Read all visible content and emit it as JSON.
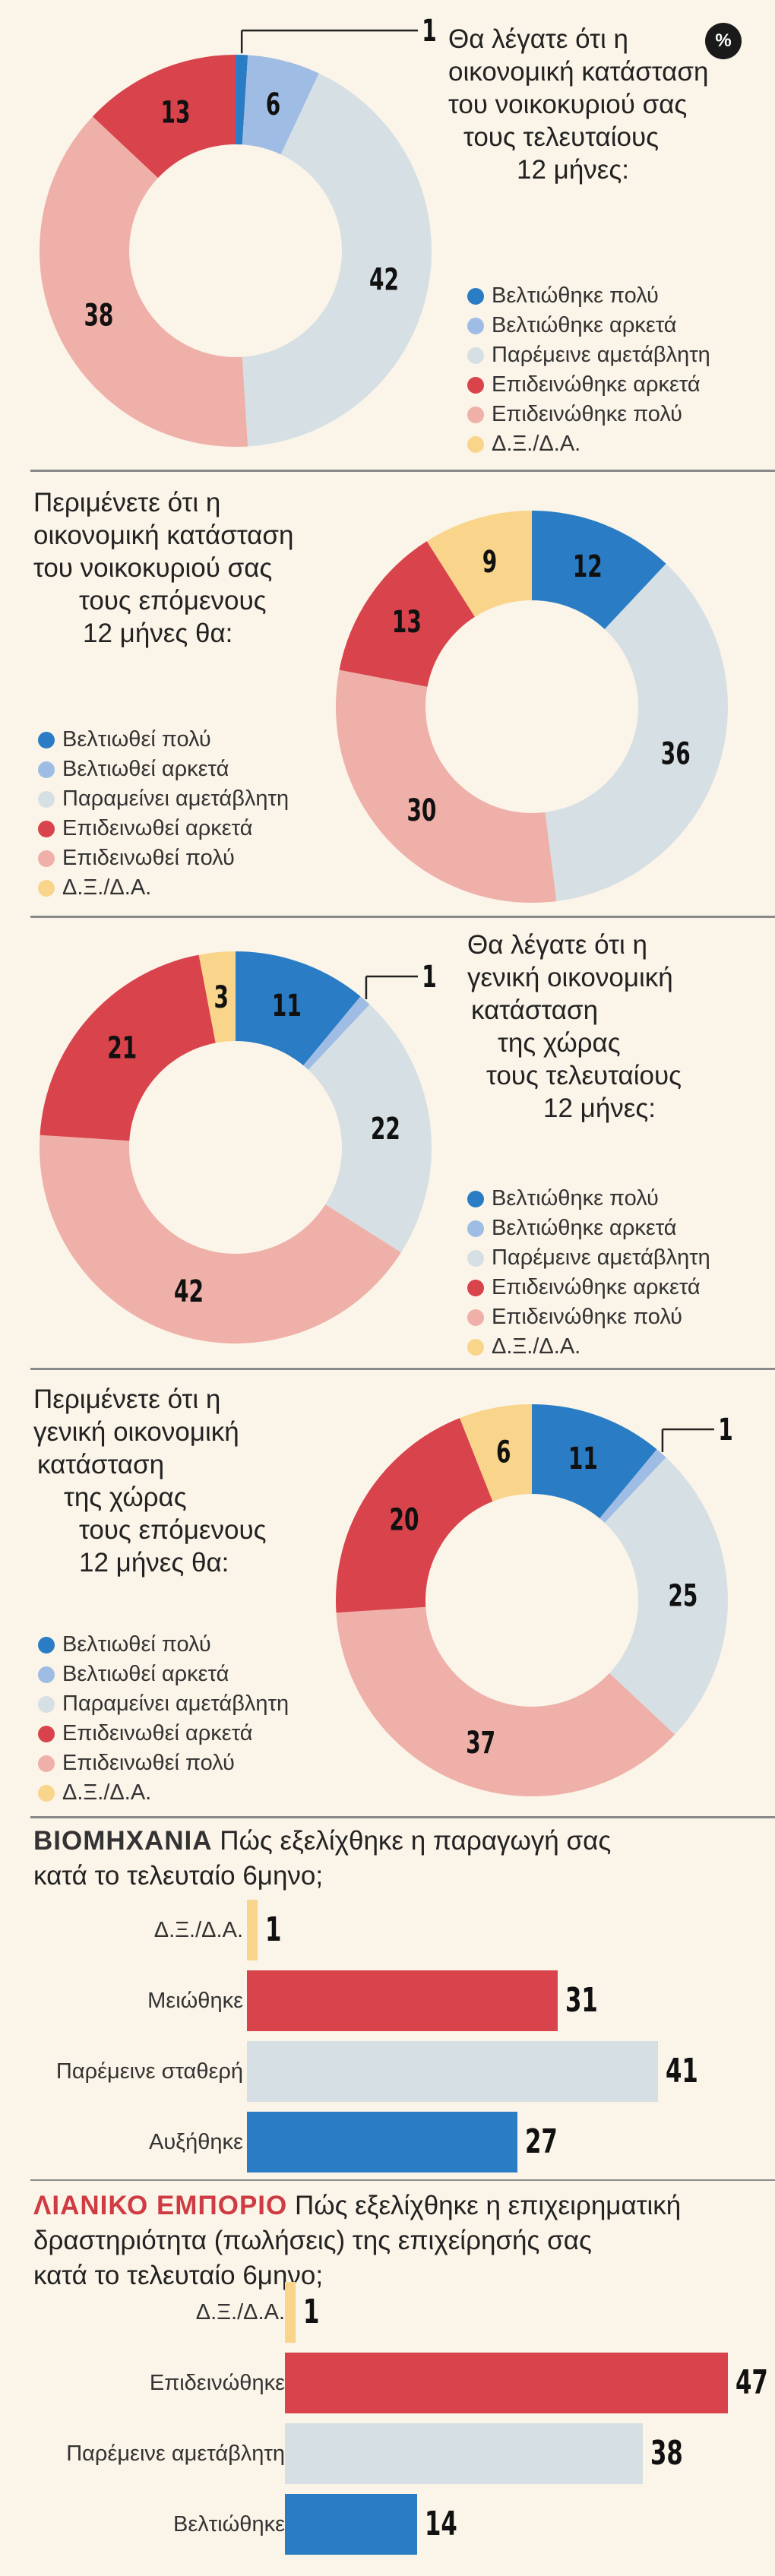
{
  "badge": "%",
  "colors": {
    "improved_much": "#2a7dc4",
    "improved_somewhat": "#9fbde4",
    "unchanged": "#d6e0e4",
    "worse_somewhat": "#d8434c",
    "worse_much": "#eeb0a8",
    "dk": "#f8d58a"
  },
  "chart_data": [
    {
      "type": "pie",
      "title": "Θα λέγατε ότι η οικονομική κατάσταση του νοικοκυριού σας τους τελευταίους 12 μήνες:",
      "categories": [
        "Βελτιώθηκε πολύ",
        "Βελτιώθηκε αρκετά",
        "Παρέμεινε αμετάβλητη",
        "Επιδεινώθηκε αρκετά",
        "Επιδεινώθηκε πολύ",
        "Δ.Ξ./Δ.Α."
      ],
      "values": [
        1,
        6,
        42,
        13,
        38,
        0
      ],
      "labels": [
        "1",
        "6",
        "42",
        "13",
        "38",
        ""
      ]
    },
    {
      "type": "pie",
      "title": "Περιμένετε ότι η οικονομική κατάσταση του νοικοκυριού σας τους επόμενους 12 μήνες θα:",
      "categories": [
        "Βελτιωθεί πολύ",
        "Βελτιωθεί αρκετά",
        "Παραμείνει αμετάβλητη",
        "Επιδεινωθεί αρκετά",
        "Επιδεινωθεί πολύ",
        "Δ.Ξ./Δ.Α."
      ],
      "values": [
        12,
        0,
        36,
        13,
        30,
        9
      ],
      "labels": [
        "12",
        "",
        "36",
        "13",
        "30",
        "9"
      ]
    },
    {
      "type": "pie",
      "title": "Θα λέγατε ότι η γενική οικονομική κατάσταση της χώρας τους τελευταίους 12 μήνες:",
      "categories": [
        "Βελτιώθηκε πολύ",
        "Βελτιώθηκε αρκετά",
        "Παρέμεινε αμετάβλητη",
        "Επιδεινώθηκε αρκετά",
        "Επιδεινώθηκε πολύ",
        "Δ.Ξ./Δ.Α."
      ],
      "values": [
        11,
        1,
        22,
        21,
        42,
        3
      ],
      "labels": [
        "11",
        "1",
        "22",
        "21",
        "42",
        "3"
      ]
    },
    {
      "type": "pie",
      "title": "Περιμένετε ότι η γενική οικονομική κατάσταση της χώρας τους επόμενους 12 μήνες θα:",
      "categories": [
        "Βελτιωθεί πολύ",
        "Βελτιωθεί αρκετά",
        "Παραμείνει αμετάβλητη",
        "Επιδεινωθεί αρκετά",
        "Επιδεινωθεί πολύ",
        "Δ.Ξ./Δ.Α."
      ],
      "values": [
        11,
        1,
        25,
        20,
        37,
        6
      ],
      "labels": [
        "11",
        "1",
        "25",
        "20",
        "37",
        "6"
      ]
    },
    {
      "type": "bar",
      "title_keyword": "ΒΙΟΜΗΧΑΝΙΑ",
      "title": "Πώς εξελίχθηκε η παραγωγή σας κατά το τελευταίο 6μηνο;",
      "categories": [
        "Δ.Ξ./Δ.Α.",
        "Μειώθηκε",
        "Παρέμεινε σταθερή",
        "Αυξήθηκε"
      ],
      "values": [
        1,
        31,
        41,
        27
      ],
      "colors": [
        "#f8d58a",
        "#d8434c",
        "#d6e0e4",
        "#2a7dc4"
      ],
      "xlim": [
        0,
        45
      ]
    },
    {
      "type": "bar",
      "title_keyword": "ΛΙΑΝΙΚΟ ΕΜΠΟΡΙΟ",
      "title": "Πώς εξελίχθηκε η επιχειρηματική δραστηριότητα (πωλήσεις) της επιχείρησής σας κατά το τελευταίο 6μηνο;",
      "categories": [
        "Δ.Ξ./Δ.Α.",
        "Επιδεινώθηκε",
        "Παρέμεινε αμετάβλητη",
        "Βελτιώθηκε"
      ],
      "values": [
        1,
        47,
        38,
        14
      ],
      "colors": [
        "#f8d58a",
        "#d8434c",
        "#d6e0e4",
        "#2a7dc4"
      ],
      "xlim": [
        0,
        50
      ]
    }
  ],
  "q1": {
    "lines": [
      "Θα λέγατε ότι η",
      "οικονομική κατάσταση",
      "του νοικοκυριού σας",
      "τους τελευταίους",
      "12 μήνες:"
    ]
  },
  "q2": {
    "lines": [
      "Περιμένετε ότι η",
      "οικονομική κατάσταση",
      "του νοικοκυριού σας",
      "τους επόμενους",
      "12 μήνες θα:"
    ]
  },
  "q3": {
    "lines": [
      "Θα λέγατε ότι η",
      "γενική οικονομική",
      "κατάσταση",
      "της χώρας",
      "τους τελευταίους",
      "12 μήνες:"
    ]
  },
  "q4": {
    "lines": [
      "Περιμένετε ότι η",
      "γενική οικονομική",
      "κατάσταση",
      "της χώρας",
      "τους επόμενους",
      "12 μήνες θα:"
    ]
  },
  "bars1": {
    "title_line2": "κατά το τελευταίο 6μηνο;",
    "title_line1_rest": " Πώς εξελίχθηκε η παραγωγή σας"
  },
  "bars2": {
    "title_line1_rest": " Πώς εξελίχθηκε η επιχειρηματική",
    "title_line2": "δραστηριότητα (πωλήσεις) της επιχείρησής σας",
    "title_line3": "κατά το τελευταίο 6μηνο;"
  }
}
